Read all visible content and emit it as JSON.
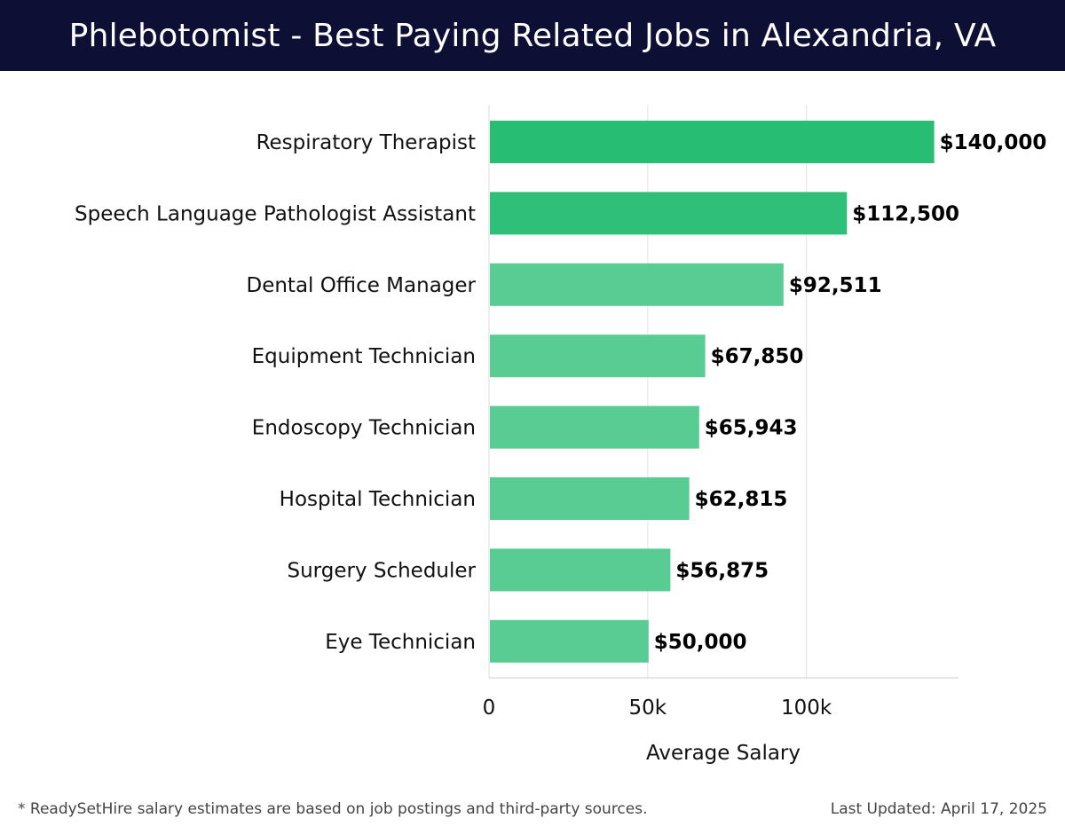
{
  "header": {
    "title": "Phlebotomist - Best Paying Related Jobs in Alexandria, VA"
  },
  "chart_data": {
    "type": "bar",
    "orientation": "horizontal",
    "categories": [
      "Respiratory Therapist",
      "Speech Language Pathologist Assistant",
      "Dental Office Manager",
      "Equipment Technician",
      "Endoscopy Technician",
      "Hospital Technician",
      "Surgery Scheduler",
      "Eye Technician"
    ],
    "values": [
      140000,
      112500,
      92511,
      67850,
      65943,
      62815,
      56875,
      50000
    ],
    "value_labels": [
      "$140,000",
      "$112,500",
      "$92,511",
      "$67,850",
      "$65,943",
      "$62,815",
      "$56,875",
      "$50,000"
    ],
    "xlabel": "Average Salary",
    "ylabel": "",
    "xticks": [
      0,
      50000,
      100000
    ],
    "xtick_labels": [
      "0",
      "50k",
      "100k"
    ],
    "xlim": [
      0,
      147000
    ],
    "grid": true,
    "colors": {
      "bar_top": "#27bd73",
      "bar_light": "#58cc93"
    }
  },
  "footer": {
    "note": "* ReadySetHire salary estimates are based on job postings and third-party sources.",
    "updated": "Last Updated: April 17, 2025"
  }
}
